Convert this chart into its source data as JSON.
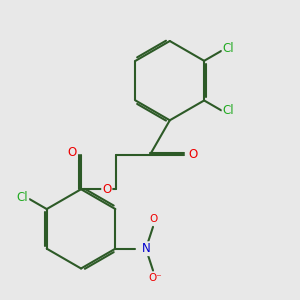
{
  "background_color": "#e8e8e8",
  "bond_color": "#2d5a27",
  "dbo": 0.055,
  "lw": 1.5,
  "atom_colors": {
    "Cl": "#22aa22",
    "O": "#ee0000",
    "N": "#0000cc"
  },
  "fs": 8.5,
  "fig_size": [
    3.0,
    3.0
  ],
  "dpi": 100
}
